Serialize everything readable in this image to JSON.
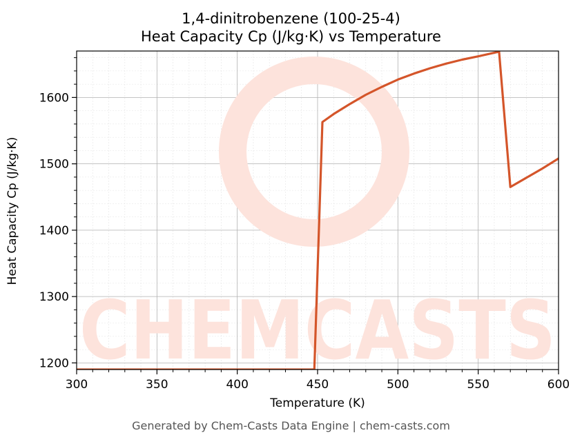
{
  "title": {
    "line1": "1,4-dinitrobenzene (100-25-4)",
    "line2": "Heat Capacity Cp (J/kg·K) vs Temperature"
  },
  "footer": "Generated by Chem-Casts Data Engine | chem-casts.com",
  "watermark": "CHEMCASTS",
  "colors": {
    "line": "#d4552a",
    "watermark": "#fde3dc",
    "grid_major": "#b0b0b0",
    "grid_minor": "#e4e4e4"
  },
  "chart_data": {
    "type": "line",
    "xlabel": "Temperature (K)",
    "ylabel": "Heat Capacity Cp (J/kg·K)",
    "xlim": [
      300,
      600
    ],
    "ylim": [
      1190,
      1670
    ],
    "xticks": [
      300,
      350,
      400,
      450,
      500,
      550,
      600
    ],
    "yticks": [
      1200,
      1300,
      1400,
      1500,
      1600
    ],
    "grid": true,
    "series": [
      {
        "x": [
          300,
          350,
          400,
          448,
          453,
          460,
          470,
          480,
          490,
          500,
          510,
          520,
          530,
          540,
          550,
          563,
          570,
          580,
          590,
          600
        ],
        "y": [
          1190,
          1190,
          1190,
          1190,
          1563,
          1575,
          1590,
          1604,
          1616,
          1627,
          1636,
          1644,
          1651,
          1657,
          1662,
          1669,
          1465,
          1479,
          1493,
          1508
        ]
      }
    ]
  }
}
